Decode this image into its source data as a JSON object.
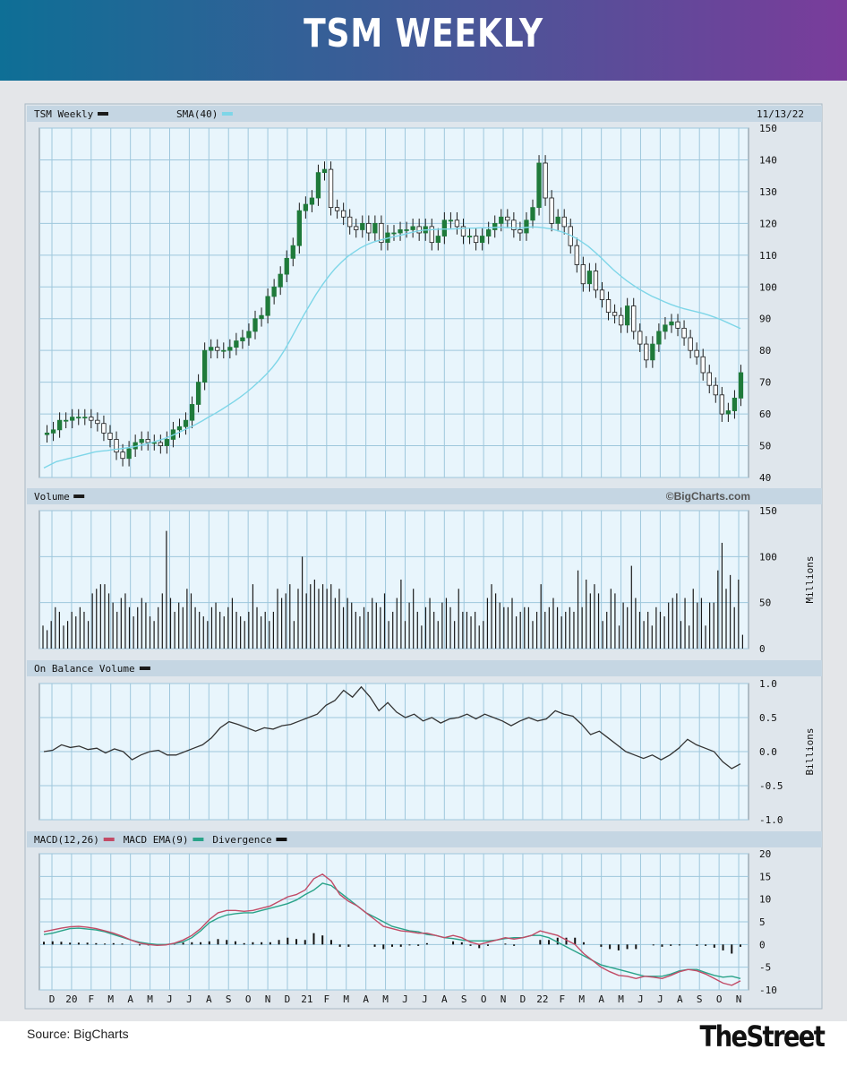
{
  "header": {
    "title": "TSM WEEKLY"
  },
  "footer": {
    "source": "Source: BigCharts",
    "brand": "TheStreet"
  },
  "colors": {
    "up": "#1f7a3a",
    "down": "#1a1a1a",
    "sma": "#7ed6e8",
    "volume": "#1a1a1a",
    "obv": "#333333",
    "macd": "#c24b66",
    "macd_ema": "#2aa389",
    "divergence": "#111111",
    "grid": "#9ec7dc",
    "panel_bg": "#e8f5fc",
    "band": "#c5d6e3"
  },
  "chart_data": {
    "type": "line",
    "title": "TSM Weekly",
    "date": "11/13/22",
    "credit": "©BigCharts.com",
    "x_ticks": [
      "D",
      "20",
      "F",
      "M",
      "A",
      "M",
      "J",
      "J",
      "A",
      "S",
      "O",
      "N",
      "D",
      "21",
      "F",
      "M",
      "A",
      "M",
      "J",
      "J",
      "A",
      "S",
      "O",
      "N",
      "D",
      "22",
      "F",
      "M",
      "A",
      "M",
      "J",
      "J",
      "A",
      "S",
      "O",
      "N"
    ],
    "panels": [
      {
        "name": "price",
        "legend": [
          {
            "label": "TSM Weekly",
            "color": "#1a1a1a"
          },
          {
            "label": "SMA(40)",
            "color": "#7ed6e8"
          }
        ],
        "y_ticks": [
          "150",
          "140",
          "130",
          "120",
          "110",
          "100",
          "90",
          "80",
          "70",
          "60",
          "50",
          "40"
        ],
        "ylim": [
          40,
          150
        ],
        "close": [
          54,
          55,
          58,
          58,
          59,
          59,
          59,
          58,
          57,
          54,
          52,
          48,
          46,
          49,
          51,
          52,
          51,
          51,
          50,
          52,
          55,
          56,
          58,
          63,
          70,
          80,
          81,
          80,
          80,
          81,
          83,
          84,
          86,
          90,
          91,
          97,
          100,
          104,
          109,
          113,
          124,
          126,
          128,
          136,
          137,
          125,
          124,
          122,
          119,
          118,
          120,
          117,
          120,
          114,
          117,
          117,
          118,
          118,
          119,
          117,
          119,
          114,
          116,
          121,
          121,
          119,
          116,
          116,
          114,
          116,
          118,
          120,
          122,
          121,
          118,
          117,
          121,
          125,
          139,
          128,
          120,
          122,
          119,
          113,
          107,
          101,
          105,
          99,
          96,
          92,
          91,
          88,
          94,
          86,
          82,
          77,
          82,
          86,
          88,
          89,
          87,
          84,
          80,
          78,
          73,
          69,
          66,
          60,
          61,
          65,
          73
        ],
        "sma40": [
          43,
          44,
          45,
          45.5,
          46,
          46.5,
          47,
          47.5,
          48,
          48.3,
          48.5,
          48.8,
          49,
          49.3,
          49.6,
          50,
          50.5,
          51,
          51.6,
          52.2,
          53,
          53.9,
          54.8,
          55.7,
          56.7,
          57.8,
          59,
          60.1,
          61.3,
          62.6,
          63.9,
          65.3,
          66.8,
          68.5,
          70.3,
          72.2,
          74.4,
          77,
          80.1,
          83.6,
          87.3,
          91,
          94.4,
          97.7,
          100.7,
          103.4,
          105.8,
          107.8,
          109.6,
          111,
          112.3,
          113.3,
          114.1,
          114.7,
          115.2,
          115.7,
          116.1,
          116.6,
          117.1,
          117.6,
          117.9,
          118,
          118.1,
          118.2,
          118.2,
          118.3,
          118.4,
          118.5,
          118.5,
          118.6,
          118.6,
          118.7,
          118.8,
          118.7,
          118.6,
          118.5,
          118.7,
          118.9,
          118.8,
          118.6,
          118.3,
          117.8,
          117.2,
          116.4,
          115.4,
          114.1,
          112.7,
          111,
          109.2,
          107.2,
          105.3,
          103.6,
          102,
          100.6,
          99.3,
          98.2,
          97.1,
          96.2,
          95.3,
          94.5,
          93.8,
          93.2,
          92.7,
          92.2,
          91.7,
          91.1,
          90.4,
          89.6,
          88.7,
          87.8,
          86.9
        ]
      },
      {
        "name": "volume",
        "legend": [
          {
            "label": "Volume",
            "color": "#1a1a1a"
          }
        ],
        "credit": "©BigCharts.com",
        "unit_label": "Millions",
        "y_ticks": [
          "150",
          "100",
          "50",
          "0"
        ],
        "ylim": [
          0,
          150
        ],
        "values": [
          25,
          20,
          30,
          45,
          40,
          25,
          30,
          40,
          35,
          45,
          40,
          30,
          60,
          65,
          70,
          70,
          60,
          50,
          40,
          55,
          60,
          45,
          35,
          45,
          55,
          50,
          35,
          30,
          45,
          60,
          128,
          55,
          40,
          50,
          45,
          65,
          60,
          45,
          40,
          35,
          30,
          45,
          50,
          40,
          35,
          45,
          55,
          40,
          35,
          30,
          40,
          70,
          45,
          35,
          40,
          30,
          40,
          65,
          55,
          60,
          70,
          30,
          65,
          100,
          60,
          70,
          75,
          65,
          70,
          65,
          70,
          55,
          65,
          45,
          55,
          50,
          40,
          35,
          45,
          40,
          55,
          50,
          45,
          60,
          30,
          40,
          55,
          75,
          30,
          50,
          65,
          40,
          25,
          45,
          55,
          40,
          30,
          50,
          55,
          45,
          30,
          65,
          40,
          40,
          35,
          40,
          25,
          30,
          55,
          70,
          60,
          50,
          45,
          45,
          55,
          35,
          40,
          45,
          45,
          30,
          40,
          70,
          40,
          45,
          55,
          45,
          35,
          40,
          45,
          40,
          85,
          45,
          75,
          60,
          70,
          60,
          30,
          40,
          65,
          60,
          25,
          50,
          45,
          90,
          55,
          40,
          30,
          40,
          25,
          45,
          40,
          35,
          50,
          55,
          60,
          30,
          55,
          25,
          65,
          50,
          55,
          25,
          50,
          50,
          85,
          115,
          65,
          80,
          45,
          75,
          15
        ]
      },
      {
        "name": "on_balance_volume",
        "legend": [
          {
            "label": "On Balance Volume",
            "color": "#1a1a1a"
          }
        ],
        "unit_label": "Billions",
        "y_ticks": [
          "1.0",
          "0.5",
          "0.0",
          "-0.5",
          "-1.0"
        ],
        "ylim": [
          -1.0,
          1.0
        ],
        "values": [
          0,
          0.02,
          0.1,
          0.06,
          0.08,
          0.03,
          0.05,
          -0.02,
          0.04,
          0.0,
          -0.12,
          -0.05,
          0.0,
          0.02,
          -0.05,
          -0.05,
          0.0,
          0.05,
          0.1,
          0.2,
          0.35,
          0.44,
          0.4,
          0.35,
          0.3,
          0.35,
          0.33,
          0.38,
          0.4,
          0.45,
          0.5,
          0.55,
          0.68,
          0.75,
          0.9,
          0.8,
          0.95,
          0.8,
          0.6,
          0.72,
          0.58,
          0.5,
          0.55,
          0.45,
          0.5,
          0.42,
          0.48,
          0.5,
          0.55,
          0.48,
          0.55,
          0.5,
          0.45,
          0.38,
          0.45,
          0.5,
          0.45,
          0.48,
          0.6,
          0.55,
          0.52,
          0.4,
          0.25,
          0.3,
          0.2,
          0.1,
          0.0,
          -0.05,
          -0.1,
          -0.05,
          -0.12,
          -0.05,
          0.05,
          0.18,
          0.1,
          0.05,
          0.0,
          -0.15,
          -0.25,
          -0.18
        ]
      },
      {
        "name": "macd",
        "legend": [
          {
            "label": "MACD(12,26)",
            "color": "#c24b66"
          },
          {
            "label": "MACD EMA(9)",
            "color": "#2aa389"
          },
          {
            "label": "Divergence",
            "color": "#111111"
          }
        ],
        "y_ticks": [
          "20",
          "15",
          "10",
          "5",
          "0",
          "-5",
          "-10"
        ],
        "ylim": [
          -10,
          20
        ],
        "macd": [
          2.8,
          3.2,
          3.6,
          3.9,
          4.0,
          3.8,
          3.5,
          3.0,
          2.5,
          1.8,
          1.0,
          0.3,
          0.0,
          -0.2,
          -0.1,
          0.3,
          1.0,
          2.0,
          3.5,
          5.5,
          7.0,
          7.5,
          7.5,
          7.3,
          7.5,
          8.0,
          8.5,
          9.5,
          10.5,
          11.0,
          12.0,
          14.5,
          15.5,
          14.0,
          11.0,
          9.5,
          8.5,
          7.0,
          5.5,
          4.0,
          3.5,
          3.0,
          2.8,
          2.5,
          2.5,
          2.0,
          1.5,
          2.0,
          1.5,
          0.5,
          0.0,
          0.5,
          1.0,
          1.5,
          1.2,
          1.5,
          2.0,
          3.0,
          2.5,
          2.0,
          1.0,
          0.0,
          -2.0,
          -3.5,
          -5.0,
          -6.0,
          -6.8,
          -7.0,
          -7.5,
          -7.0,
          -7.2,
          -7.5,
          -6.8,
          -6.0,
          -5.5,
          -5.8,
          -6.5,
          -7.5,
          -8.5,
          -9.0,
          -8.0
        ],
        "ema": [
          2.2,
          2.5,
          3.0,
          3.5,
          3.6,
          3.4,
          3.2,
          2.8,
          2.2,
          1.6,
          1.0,
          0.5,
          0.2,
          0.0,
          0.0,
          0.2,
          0.6,
          1.5,
          3.0,
          4.8,
          5.8,
          6.5,
          6.8,
          7.0,
          7.0,
          7.5,
          8.0,
          8.5,
          9.0,
          9.8,
          11.0,
          12.0,
          13.5,
          13.0,
          11.5,
          10.0,
          8.5,
          7.0,
          6.0,
          5.0,
          4.0,
          3.5,
          3.0,
          2.8,
          2.2,
          2.0,
          1.5,
          1.3,
          1.0,
          0.8,
          0.8,
          0.8,
          1.0,
          1.3,
          1.5,
          1.5,
          2.0,
          2.0,
          1.5,
          0.5,
          -0.5,
          -1.5,
          -2.5,
          -3.5,
          -4.5,
          -5.0,
          -5.5,
          -6.0,
          -6.5,
          -7.0,
          -7.0,
          -7.0,
          -6.5,
          -5.8,
          -5.5,
          -5.5,
          -6.2,
          -6.8,
          -7.2,
          -7.0,
          -7.5
        ],
        "divergence": [
          0.6,
          0.7,
          0.6,
          0.4,
          0.4,
          0.4,
          0.3,
          0.2,
          0.3,
          0.2,
          0.0,
          -0.2,
          -0.2,
          -0.2,
          -0.1,
          0.1,
          0.4,
          0.5,
          0.5,
          0.7,
          1.2,
          1.0,
          0.7,
          0.3,
          0.5,
          0.5,
          0.5,
          1.0,
          1.5,
          1.2,
          1.0,
          2.5,
          2.0,
          1.0,
          -0.5,
          -0.5,
          0.0,
          0.0,
          -0.5,
          -1.0,
          -0.5,
          -0.5,
          -0.2,
          -0.3,
          0.3,
          0.0,
          0.0,
          0.7,
          0.5,
          -0.3,
          -0.8,
          -0.3,
          0.0,
          0.2,
          -0.3,
          0.0,
          0.0,
          1.0,
          1.0,
          1.5,
          1.5,
          1.5,
          0.5,
          0.0,
          -0.5,
          -1.0,
          -1.3,
          -1.0,
          -1.0,
          0.0,
          -0.2,
          -0.5,
          -0.3,
          -0.2,
          0.0,
          -0.3,
          -0.3,
          -0.7,
          -1.3,
          -2.0,
          -0.5
        ]
      }
    ]
  }
}
